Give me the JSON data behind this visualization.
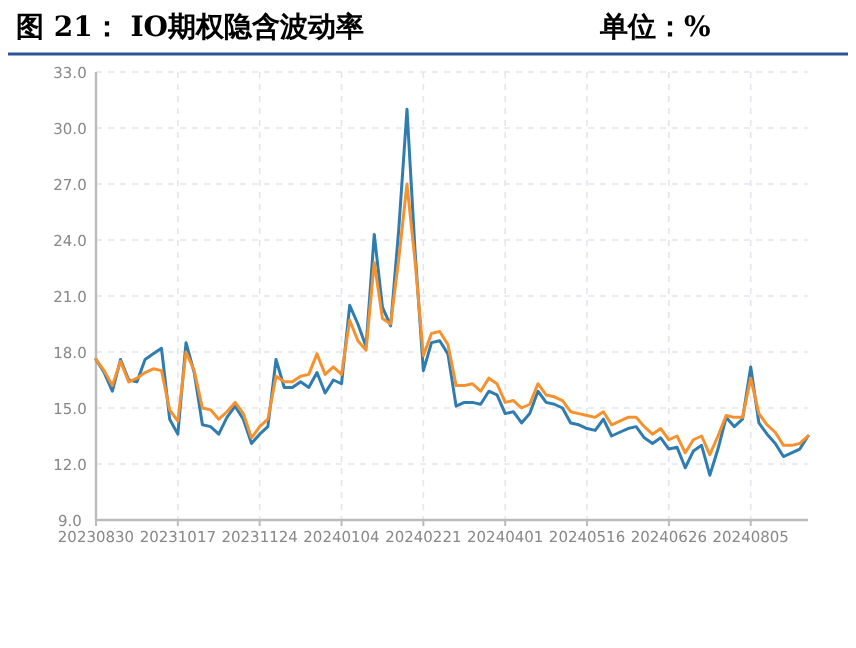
{
  "chart_data": {
    "type": "line",
    "title": "图 21：  IO期权隐含波动率",
    "subtitle": "单位：%",
    "categories": [
      "20230830",
      null,
      null,
      null,
      null,
      null,
      null,
      null,
      null,
      null,
      "20231017",
      null,
      null,
      null,
      null,
      null,
      null,
      null,
      null,
      null,
      "20231124",
      null,
      null,
      null,
      null,
      null,
      null,
      null,
      null,
      null,
      "20240104",
      null,
      null,
      null,
      null,
      null,
      null,
      null,
      null,
      null,
      "20240221",
      null,
      null,
      null,
      null,
      null,
      null,
      null,
      null,
      null,
      "20240401",
      null,
      null,
      null,
      null,
      null,
      null,
      null,
      null,
      null,
      "20240516",
      null,
      null,
      null,
      null,
      null,
      null,
      null,
      null,
      null,
      "20240626",
      null,
      null,
      null,
      null,
      null,
      null,
      null,
      null,
      null,
      "20240805",
      null,
      null,
      null,
      null,
      null,
      null,
      null
    ],
    "ylim": [
      9,
      33
    ],
    "yticks": [
      {
        "value": 9,
        "label": "9.0"
      },
      {
        "value": 12,
        "label": "12.0"
      },
      {
        "value": 15,
        "label": "15.0"
      },
      {
        "value": 18,
        "label": "18.0"
      },
      {
        "value": 21,
        "label": "21.0"
      },
      {
        "value": 24,
        "label": "24.0"
      },
      {
        "value": 27,
        "label": "27.0"
      },
      {
        "value": 30,
        "label": "30.0"
      },
      {
        "value": 33,
        "label": "33.0"
      }
    ],
    "grid": true,
    "marker": "none",
    "line_style": "solid",
    "series": [
      {
        "color": "#2e7cb0",
        "values": [
          17.6,
          16.9,
          15.9,
          17.6,
          16.5,
          16.4,
          17.6,
          17.9,
          18.2,
          14.4,
          13.6,
          18.5,
          16.9,
          14.1,
          14.0,
          13.6,
          14.5,
          15.1,
          14.4,
          13.1,
          13.6,
          14.0,
          17.6,
          16.1,
          16.1,
          16.4,
          16.1,
          16.9,
          15.8,
          16.5,
          16.3,
          20.5,
          19.5,
          18.3,
          24.3,
          20.4,
          19.4,
          24.6,
          31.0,
          23.3,
          17.0,
          18.5,
          18.6,
          17.9,
          15.1,
          15.3,
          15.3,
          15.2,
          15.9,
          15.7,
          14.7,
          14.8,
          14.2,
          14.7,
          15.9,
          15.3,
          15.2,
          15.0,
          14.2,
          14.1,
          13.9,
          13.8,
          14.4,
          13.5,
          13.7,
          13.9,
          14.0,
          13.4,
          13.1,
          13.4,
          12.8,
          12.9,
          11.8,
          12.7,
          13.0,
          11.4,
          12.8,
          14.5,
          14.0,
          14.4,
          17.2,
          14.2,
          13.6,
          13.1,
          12.4,
          12.6,
          12.8,
          13.5
        ]
      },
      {
        "color": "#f5922f",
        "values": [
          17.6,
          17.0,
          16.2,
          17.5,
          16.4,
          16.6,
          16.9,
          17.1,
          17.0,
          14.9,
          14.3,
          18.0,
          17.0,
          15.0,
          14.9,
          14.4,
          14.8,
          15.3,
          14.7,
          13.4,
          14.0,
          14.4,
          16.7,
          16.4,
          16.4,
          16.7,
          16.8,
          17.9,
          16.8,
          17.2,
          16.8,
          19.7,
          18.6,
          18.1,
          22.8,
          19.8,
          19.5,
          23.0,
          27.0,
          22.8,
          17.8,
          19.0,
          19.1,
          18.4,
          16.2,
          16.2,
          16.3,
          15.9,
          16.6,
          16.3,
          15.3,
          15.4,
          15.0,
          15.2,
          16.3,
          15.7,
          15.6,
          15.4,
          14.8,
          14.7,
          14.6,
          14.5,
          14.8,
          14.1,
          14.3,
          14.5,
          14.5,
          14.0,
          13.6,
          13.9,
          13.3,
          13.5,
          12.6,
          13.3,
          13.5,
          12.5,
          13.5,
          14.6,
          14.5,
          14.5,
          16.6,
          14.7,
          14.1,
          13.7,
          13.0,
          13.0,
          13.1,
          13.5
        ]
      }
    ]
  }
}
